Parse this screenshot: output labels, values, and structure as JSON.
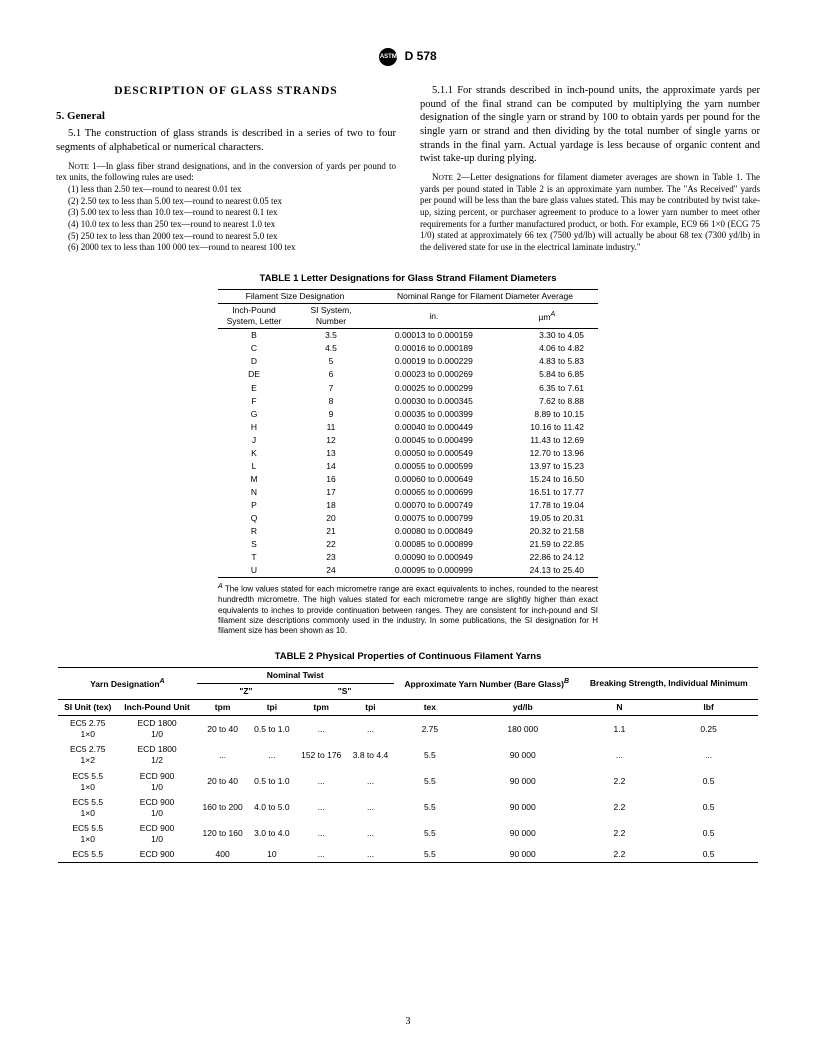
{
  "header": {
    "std": "D 578",
    "logo_text": "ASTM"
  },
  "section_title": "DESCRIPTION  OF  GLASS  STRANDS",
  "s5": {
    "head": "5.  General",
    "p51": "5.1 The construction of glass strands is described in a series of two to four segments of alphabetical or numerical characters.",
    "note1_lead": "NOTE 1—In glass fiber strand designations, and in the conversion of yards per pound to tex units, the following rules are used:",
    "note1_items": [
      "(1) less than 2.50 tex—round to nearest 0.01 tex",
      "(2) 2.50 tex to less than 5.00 tex—round to nearest 0.05 tex",
      "(3) 5.00 tex to less than 10.0 tex—round to nearest 0.1 tex",
      "(4) 10.0 tex to less than 250 tex—round to nearest 1.0 tex",
      "(5) 250 tex to less than 2000 tex—round to nearest 5.0 tex",
      "(6) 2000 tex to less than 100 000 tex—round to nearest 100 tex"
    ],
    "p511": "5.1.1 For strands described in inch-pound units, the approximate yards per pound of the final strand can be computed by multiplying the yarn number designation of the single yarn or strand by 100 to obtain yards per pound for the single yarn or strand and then dividing by the total number of single yarns or strands in the final yarn. Actual yardage is less because of organic content and twist take-up during plying.",
    "note2": "NOTE 2—Letter designations for filament diameter averages are shown in Table 1. The yards per pound stated in Table 2 is an approximate yarn number. The \"As Received\" yards per pound will be less than the bare glass values stated. This may be contributed by twist take-up, sizing percent, or purchaser agreement to produce to a lower yarn number to meet other requirements for a further manufactured product, or both. For example, EC9 66 1×0 (ECG 75 1/0) stated at approximately 66 tex (7500 yd/lb) will actually be about 68 tex (7300 yd/lb) in the delivered state for use in the electrical laminate industry.\""
  },
  "table1": {
    "title": "TABLE 1  Letter Designations for Glass Strand Filament Diameters",
    "h1": "Filament Size Designation",
    "h2": "Nominal Range for Filament Diameter Average",
    "sh1": "Inch-Pound System, Letter",
    "sh2": "SI System, Number",
    "sh3": "in.",
    "sh4": "µm",
    "sup": "A",
    "rows": [
      [
        "B",
        "3.5",
        "0.00013 to 0.000159",
        "3.30 to",
        "4.05"
      ],
      [
        "C",
        "4.5",
        "0.00016 to 0.000189",
        "4.06 to",
        "4.82"
      ],
      [
        "D",
        "5",
        "0.00019 to 0.000229",
        "4.83 to",
        "5.83"
      ],
      [
        "DE",
        "6",
        "0.00023 to 0.000269",
        "5.84 to",
        "6.85"
      ],
      [
        "E",
        "7",
        "0.00025 to 0.000299",
        "6.35 to",
        "7.61"
      ],
      [
        "F",
        "8",
        "0.00030 to 0.000345",
        "7.62 to",
        "8.88"
      ],
      [
        "G",
        "9",
        "0.00035 to 0.000399",
        "8.89 to 10.15",
        ""
      ],
      [
        "H",
        "11",
        "0.00040 to 0.000449",
        "10.16 to 11.42",
        ""
      ],
      [
        "J",
        "12",
        "0.00045 to 0.000499",
        "11.43 to 12.69",
        ""
      ],
      [
        "K",
        "13",
        "0.00050 to 0.000549",
        "12.70 to 13.96",
        ""
      ],
      [
        "L",
        "14",
        "0.00055 to 0.000599",
        "13.97 to 15.23",
        ""
      ],
      [
        "M",
        "16",
        "0.00060 to 0.000649",
        "15.24 to 16.50",
        ""
      ],
      [
        "N",
        "17",
        "0.00065 to 0.000699",
        "16.51 to 17.77",
        ""
      ],
      [
        "P",
        "18",
        "0.00070 to 0.000749",
        "17.78 to 19.04",
        ""
      ],
      [
        "Q",
        "20",
        "0.00075 to 0.000799",
        "19.05 to 20.31",
        ""
      ],
      [
        "R",
        "21",
        "0.00080 to 0.000849",
        "20.32 to 21.58",
        ""
      ],
      [
        "S",
        "22",
        "0.00085 to 0.000899",
        "21.59 to 22.85",
        ""
      ],
      [
        "T",
        "23",
        "0.00090 to 0.000949",
        "22.86 to 24.12",
        ""
      ],
      [
        "U",
        "24",
        "0.00095 to 0.000999",
        "24.13 to 25.40",
        ""
      ]
    ],
    "foot_sup": "A",
    "foot": " The low values stated for each micrometre range are exact equivalents to inches, rounded to the nearest hundredth micrometre. The high values stated for each micrometre range are slightly higher than exact equivalents to inches to provide continuation between ranges. They are consistent for inch-pound and SI filament size descriptions commonly used in the industry. In some publications, the SI designation for H filament size has been shown as 10."
  },
  "table2": {
    "title": "TABLE 2  Physical Properties of Continuous Filament Yarns",
    "h_yarn": "Yarn Designation",
    "h_twist": "Nominal Twist",
    "h_z": "\"Z\"",
    "h_s": "\"S\"",
    "h_ayn": "Approximate Yarn Number (Bare Glass)",
    "h_bs": "Breaking Strength, Individual Minimum",
    "supA": "A",
    "supB": "B",
    "sh": [
      "SI Unit (tex)",
      "Inch-Pound Unit",
      "tpm",
      "tpi",
      "tpm",
      "tpi",
      "tex",
      "yd/lb",
      "N",
      "lbf"
    ],
    "rows": [
      [
        "EC5 2.75 1×0",
        "ECD 1800 1/0",
        "20 to 40",
        "0.5 to 1.0",
        "...",
        "...",
        "2.75",
        "180 000",
        "1.1",
        "0.25"
      ],
      [
        "EC5 2.75 1×2",
        "ECD 1800 1/2",
        "...",
        "...",
        "152 to 176",
        "3.8 to 4.4",
        "5.5",
        "90 000",
        "...",
        "..."
      ],
      [
        "EC5 5.5 1×0",
        "ECD 900 1/0",
        "20 to 40",
        "0.5 to 1.0",
        "...",
        "...",
        "5.5",
        "90 000",
        "2.2",
        "0.5"
      ],
      [
        "EC5 5.5 1×0",
        "ECD 900 1/0",
        "160 to 200",
        "4.0 to 5.0",
        "...",
        "...",
        "5.5",
        "90 000",
        "2.2",
        "0.5"
      ],
      [
        "EC5 5.5 1×0",
        "ECD 900 1/0",
        "120 to 160",
        "3.0 to 4.0",
        "...",
        "...",
        "5.5",
        "90 000",
        "2.2",
        "0.5"
      ],
      [
        "EC5 5.5",
        "ECD 900",
        "400",
        "10",
        "...",
        "...",
        "5.5",
        "90 000",
        "2.2",
        "0.5"
      ]
    ]
  },
  "page_number": "3"
}
